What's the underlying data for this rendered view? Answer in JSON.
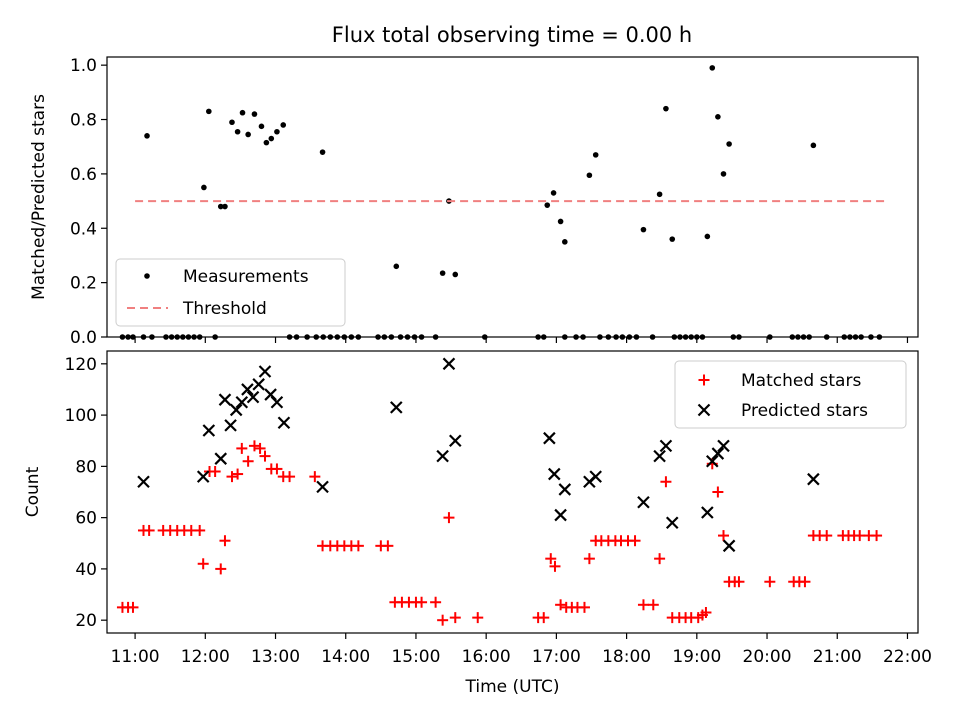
{
  "figure_title": "Flux total observing time = 0.00 h",
  "colors": {
    "measurement": "#000000",
    "threshold": "#f08080",
    "matched": "#ff0000",
    "predicted": "#000000"
  },
  "chart_data": [
    {
      "type": "scatter",
      "title": "Flux total observing time = 0.00 h",
      "ylabel": "Matched/Predicted stars",
      "xlabel": "",
      "xlim": [
        10.6,
        22.15
      ],
      "ylim": [
        0,
        1.03
      ],
      "yticks": [
        "0.0",
        "0.2",
        "0.4",
        "0.6",
        "0.8",
        "1.0"
      ],
      "ytick_values": [
        0,
        0.2,
        0.4,
        0.6,
        0.8,
        1.0
      ],
      "legend_position": "lower-left",
      "threshold": {
        "name": "Threshold",
        "y": 0.5,
        "x_range": [
          11.0,
          21.7
        ]
      },
      "series": [
        {
          "name": "Measurements",
          "marker": "dot",
          "points": [
            [
              11.17,
              0.74
            ],
            [
              11.98,
              0.55
            ],
            [
              12.05,
              0.83
            ],
            [
              12.22,
              0.48
            ],
            [
              12.28,
              0.48
            ],
            [
              12.38,
              0.79
            ],
            [
              12.46,
              0.755
            ],
            [
              12.53,
              0.825
            ],
            [
              12.61,
              0.745
            ],
            [
              12.7,
              0.82
            ],
            [
              12.8,
              0.775
            ],
            [
              12.87,
              0.715
            ],
            [
              12.94,
              0.73
            ],
            [
              13.02,
              0.755
            ],
            [
              13.11,
              0.78
            ],
            [
              13.67,
              0.68
            ],
            [
              14.72,
              0.26
            ],
            [
              15.38,
              0.235
            ],
            [
              15.47,
              0.5
            ],
            [
              15.56,
              0.23
            ],
            [
              16.87,
              0.485
            ],
            [
              16.96,
              0.53
            ],
            [
              17.06,
              0.425
            ],
            [
              17.12,
              0.35
            ],
            [
              17.47,
              0.595
            ],
            [
              17.56,
              0.67
            ],
            [
              18.24,
              0.395
            ],
            [
              18.47,
              0.525
            ],
            [
              18.56,
              0.84
            ],
            [
              18.65,
              0.36
            ],
            [
              19.15,
              0.37
            ],
            [
              19.22,
              0.99
            ],
            [
              19.3,
              0.81
            ],
            [
              19.38,
              0.6
            ],
            [
              19.46,
              0.71
            ],
            [
              20.66,
              0.705
            ],
            [
              10.82,
              0
            ],
            [
              10.9,
              0
            ],
            [
              10.97,
              0
            ],
            [
              11.12,
              0
            ],
            [
              11.24,
              0
            ],
            [
              11.44,
              0
            ],
            [
              11.52,
              0
            ],
            [
              11.6,
              0
            ],
            [
              11.68,
              0
            ],
            [
              11.76,
              0
            ],
            [
              11.84,
              0
            ],
            [
              11.92,
              0
            ],
            [
              12.14,
              0
            ],
            [
              13.2,
              0
            ],
            [
              13.3,
              0
            ],
            [
              13.45,
              0
            ],
            [
              13.58,
              0
            ],
            [
              13.68,
              0
            ],
            [
              13.78,
              0
            ],
            [
              13.88,
              0
            ],
            [
              13.98,
              0
            ],
            [
              14.08,
              0
            ],
            [
              14.18,
              0
            ],
            [
              14.46,
              0
            ],
            [
              14.55,
              0
            ],
            [
              14.65,
              0
            ],
            [
              14.78,
              0
            ],
            [
              14.88,
              0
            ],
            [
              14.98,
              0
            ],
            [
              15.08,
              0
            ],
            [
              15.28,
              0
            ],
            [
              15.98,
              0
            ],
            [
              16.74,
              0
            ],
            [
              16.82,
              0
            ],
            [
              17.12,
              0
            ],
            [
              17.28,
              0
            ],
            [
              17.38,
              0
            ],
            [
              17.62,
              0
            ],
            [
              17.74,
              0
            ],
            [
              17.85,
              0
            ],
            [
              17.94,
              0
            ],
            [
              18.04,
              0
            ],
            [
              18.14,
              0
            ],
            [
              18.37,
              0
            ],
            [
              18.68,
              0
            ],
            [
              18.76,
              0
            ],
            [
              18.84,
              0
            ],
            [
              18.92,
              0
            ],
            [
              19.0,
              0
            ],
            [
              19.08,
              0
            ],
            [
              19.52,
              0
            ],
            [
              19.6,
              0
            ],
            [
              20.04,
              0
            ],
            [
              20.36,
              0
            ],
            [
              20.44,
              0
            ],
            [
              20.52,
              0
            ],
            [
              20.6,
              0
            ],
            [
              20.85,
              0
            ],
            [
              21.1,
              0
            ],
            [
              21.18,
              0
            ],
            [
              21.26,
              0
            ],
            [
              21.34,
              0
            ],
            [
              21.48,
              0
            ],
            [
              21.6,
              0
            ]
          ]
        }
      ]
    },
    {
      "type": "scatter",
      "title": "",
      "ylabel": "Count",
      "xlabel": "Time (UTC)",
      "xlim": [
        10.6,
        22.15
      ],
      "ylim": [
        15,
        125
      ],
      "yticks": [
        "20",
        "40",
        "60",
        "80",
        "100",
        "120"
      ],
      "ytick_values": [
        20,
        40,
        60,
        80,
        100,
        120
      ],
      "xticks": [
        "11:00",
        "12:00",
        "13:00",
        "14:00",
        "15:00",
        "16:00",
        "17:00",
        "18:00",
        "19:00",
        "20:00",
        "21:00",
        "22:00"
      ],
      "xtick_values": [
        11,
        12,
        13,
        14,
        15,
        16,
        17,
        18,
        19,
        20,
        21,
        22
      ],
      "legend_position": "upper-right",
      "series": [
        {
          "name": "Matched stars",
          "marker": "plus",
          "points": [
            [
              10.82,
              25
            ],
            [
              10.9,
              25
            ],
            [
              10.97,
              25
            ],
            [
              11.12,
              55
            ],
            [
              11.2,
              55
            ],
            [
              11.4,
              55
            ],
            [
              11.5,
              55
            ],
            [
              11.6,
              55
            ],
            [
              11.7,
              55
            ],
            [
              11.8,
              55
            ],
            [
              11.92,
              55
            ],
            [
              11.97,
              42
            ],
            [
              12.06,
              78
            ],
            [
              12.14,
              78
            ],
            [
              12.22,
              40
            ],
            [
              12.28,
              51
            ],
            [
              12.38,
              76
            ],
            [
              12.46,
              77
            ],
            [
              12.52,
              87
            ],
            [
              12.61,
              82
            ],
            [
              12.7,
              88
            ],
            [
              12.78,
              87
            ],
            [
              12.85,
              84
            ],
            [
              12.94,
              79
            ],
            [
              13.02,
              79
            ],
            [
              13.11,
              76
            ],
            [
              13.2,
              76
            ],
            [
              13.56,
              76
            ],
            [
              13.67,
              49
            ],
            [
              13.78,
              49
            ],
            [
              13.88,
              49
            ],
            [
              13.98,
              49
            ],
            [
              14.08,
              49
            ],
            [
              14.18,
              49
            ],
            [
              14.5,
              49
            ],
            [
              14.6,
              49
            ],
            [
              14.7,
              27
            ],
            [
              14.8,
              27
            ],
            [
              14.9,
              27
            ],
            [
              15.0,
              27
            ],
            [
              15.08,
              27
            ],
            [
              15.28,
              27
            ],
            [
              15.38,
              20
            ],
            [
              15.47,
              60
            ],
            [
              15.56,
              21
            ],
            [
              15.88,
              21
            ],
            [
              16.74,
              21
            ],
            [
              16.82,
              21
            ],
            [
              16.92,
              44
            ],
            [
              16.98,
              41
            ],
            [
              17.06,
              26
            ],
            [
              17.14,
              25
            ],
            [
              17.22,
              25
            ],
            [
              17.3,
              25
            ],
            [
              17.4,
              25
            ],
            [
              17.47,
              44
            ],
            [
              17.56,
              51
            ],
            [
              17.64,
              51
            ],
            [
              17.74,
              51
            ],
            [
              17.84,
              51
            ],
            [
              17.92,
              51
            ],
            [
              18.02,
              51
            ],
            [
              18.12,
              51
            ],
            [
              18.24,
              26
            ],
            [
              18.38,
              26
            ],
            [
              18.47,
              44
            ],
            [
              18.56,
              74
            ],
            [
              18.65,
              21
            ],
            [
              18.75,
              21
            ],
            [
              18.84,
              21
            ],
            [
              18.92,
              21
            ],
            [
              19.02,
              21
            ],
            [
              19.08,
              22
            ],
            [
              19.13,
              23
            ],
            [
              19.22,
              81
            ],
            [
              19.3,
              70
            ],
            [
              19.38,
              53
            ],
            [
              19.46,
              35
            ],
            [
              19.54,
              35
            ],
            [
              19.6,
              35
            ],
            [
              20.04,
              35
            ],
            [
              20.38,
              35
            ],
            [
              20.46,
              35
            ],
            [
              20.54,
              35
            ],
            [
              20.66,
              53
            ],
            [
              20.75,
              53
            ],
            [
              20.85,
              53
            ],
            [
              21.08,
              53
            ],
            [
              21.16,
              53
            ],
            [
              21.24,
              53
            ],
            [
              21.32,
              53
            ],
            [
              21.45,
              53
            ],
            [
              21.56,
              53
            ]
          ]
        },
        {
          "name": "Predicted stars",
          "marker": "x",
          "points": [
            [
              11.12,
              74
            ],
            [
              11.97,
              76
            ],
            [
              12.05,
              94
            ],
            [
              12.22,
              83
            ],
            [
              12.28,
              106
            ],
            [
              12.36,
              96
            ],
            [
              12.44,
              102
            ],
            [
              12.52,
              105
            ],
            [
              12.6,
              110
            ],
            [
              12.68,
              107
            ],
            [
              12.76,
              112
            ],
            [
              12.85,
              117
            ],
            [
              12.93,
              108
            ],
            [
              13.02,
              105
            ],
            [
              13.12,
              97
            ],
            [
              13.67,
              72
            ],
            [
              14.72,
              103
            ],
            [
              15.38,
              84
            ],
            [
              15.47,
              120
            ],
            [
              15.56,
              90
            ],
            [
              16.9,
              91
            ],
            [
              16.97,
              77
            ],
            [
              17.06,
              61
            ],
            [
              17.12,
              71
            ],
            [
              17.47,
              74
            ],
            [
              17.56,
              76
            ],
            [
              18.24,
              66
            ],
            [
              18.47,
              84
            ],
            [
              18.56,
              88
            ],
            [
              18.65,
              58
            ],
            [
              19.15,
              62
            ],
            [
              19.22,
              82
            ],
            [
              19.3,
              85
            ],
            [
              19.38,
              88
            ],
            [
              19.46,
              49
            ],
            [
              20.66,
              75
            ]
          ]
        }
      ]
    }
  ]
}
